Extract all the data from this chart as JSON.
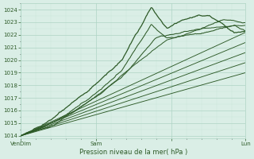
{
  "xlabel": "Pression niveau de la mer( hPa )",
  "bg_color": "#daeee6",
  "grid_major_color": "#aed4c4",
  "grid_minor_color": "#c8e6d8",
  "line_color": "#2d5a27",
  "yticks": [
    1014,
    1015,
    1016,
    1017,
    1018,
    1019,
    1020,
    1021,
    1022,
    1023,
    1024
  ],
  "ymin": 1013.8,
  "ymax": 1024.5,
  "xmin": 0.0,
  "xmax": 1.0,
  "xtick_positions": [
    0.0,
    0.335,
    0.67,
    1.0
  ],
  "xtick_labels": [
    "VenDim",
    "Sam",
    "",
    "Lun"
  ],
  "figwidth": 3.2,
  "figheight": 2.0,
  "dpi": 100
}
